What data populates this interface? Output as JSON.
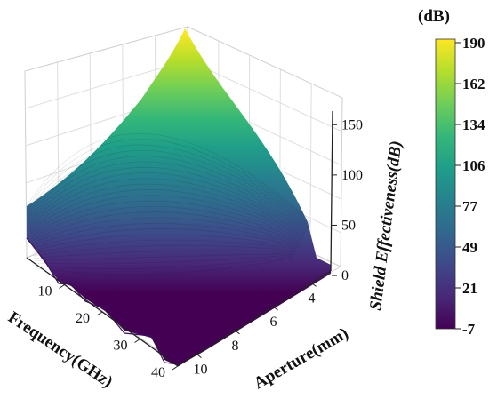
{
  "chart_data": {
    "type": "surface",
    "x": {
      "label": "Frequency(GHz)",
      "ticks": [
        10,
        20,
        30,
        40
      ],
      "range": [
        0,
        40
      ]
    },
    "y": {
      "label": "Aperture(mm)",
      "ticks": [
        4,
        6,
        8,
        10
      ],
      "range": [
        3,
        11
      ]
    },
    "z": {
      "label": "Shield Effectiveness(dB)",
      "ticks": [
        0,
        50,
        100,
        150
      ],
      "range": [
        -7,
        190
      ]
    },
    "colorbar": {
      "title": "(dB)",
      "ticks": [
        190,
        162,
        134,
        106,
        77,
        49,
        21,
        -7
      ],
      "colormap": "viridis"
    },
    "surface_profile": {
      "frequency_edge_at_aperture_3mm": [
        {
          "x": 0,
          "z": 190
        },
        {
          "x": 10,
          "z": 150
        },
        {
          "x": 20,
          "z": 105
        },
        {
          "x": 30,
          "z": 55
        },
        {
          "x": 37,
          "z": 15
        },
        {
          "x": 40,
          "z": 0
        }
      ],
      "aperture_edge_at_frequency_0": [
        {
          "y": 3,
          "z": 190
        },
        {
          "y": 5,
          "z": 170
        },
        {
          "y": 7,
          "z": 140
        },
        {
          "y": 9,
          "z": 105
        },
        {
          "y": 11,
          "z": 85
        }
      ],
      "high_frequency_floor_dB": [
        -7,
        5
      ]
    },
    "grid": true,
    "colors": {
      "viridis": [
        "#440154",
        "#482878",
        "#3e4989",
        "#31688e",
        "#26828e",
        "#1f9e89",
        "#35b779",
        "#6ece58",
        "#b5de2b",
        "#fde725"
      ]
    }
  }
}
